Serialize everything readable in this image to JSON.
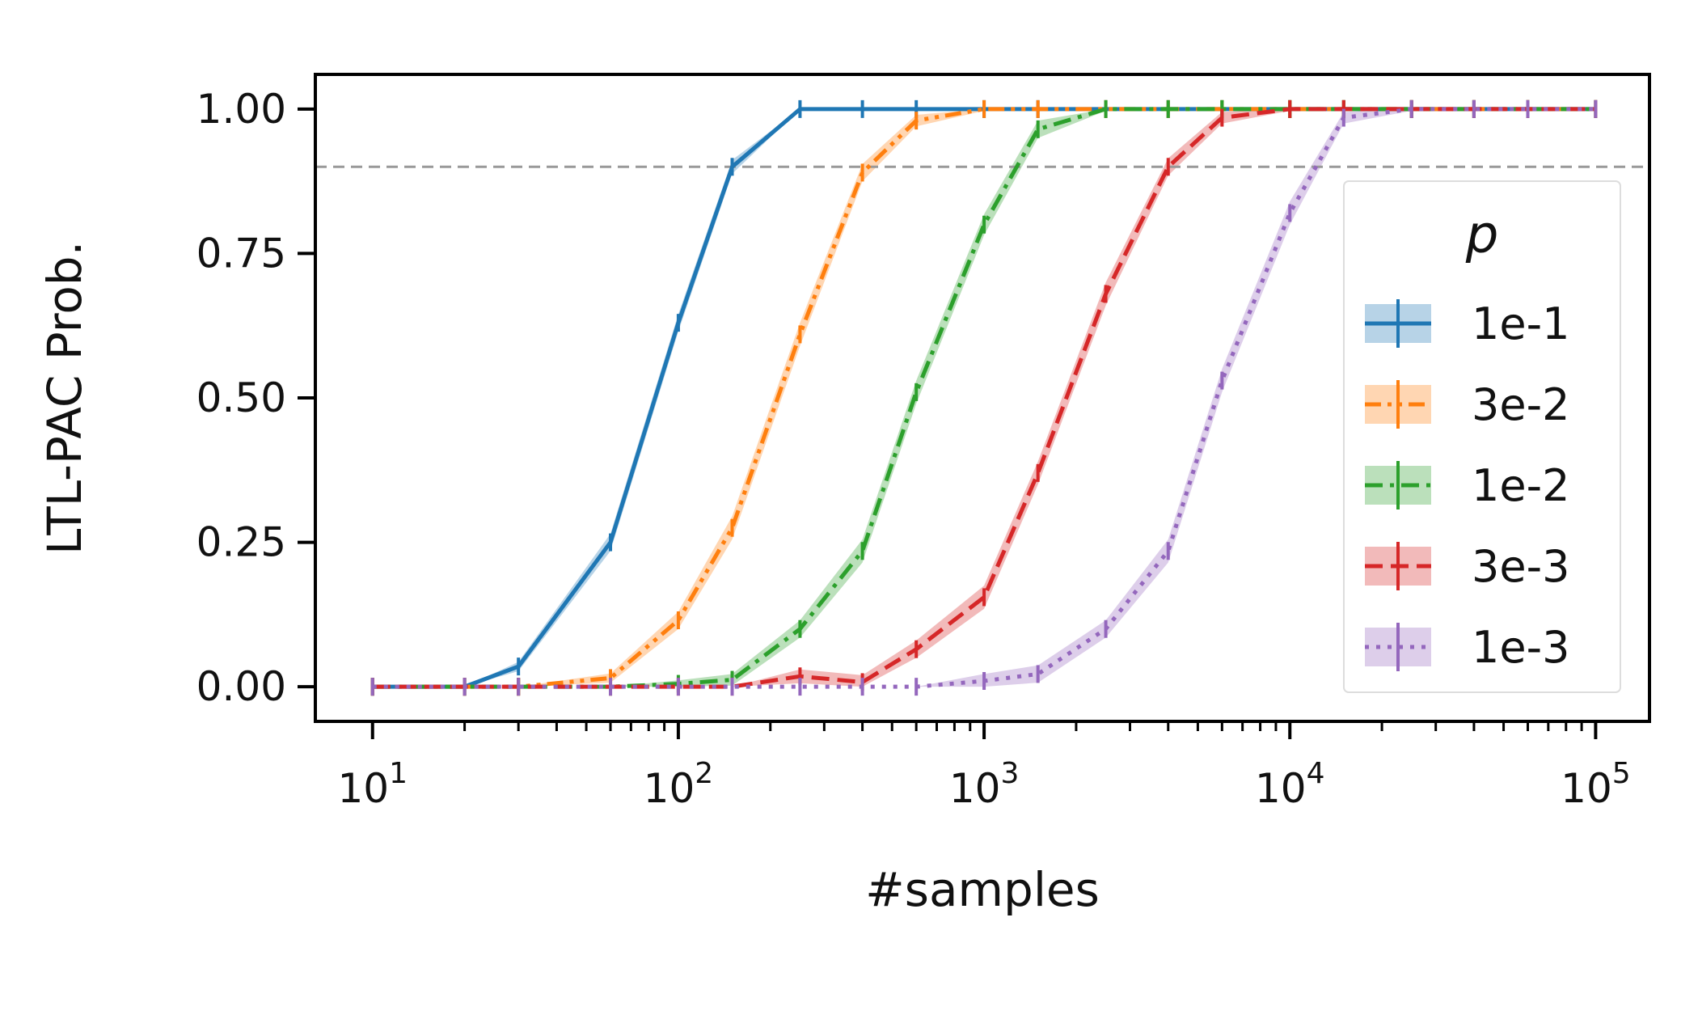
{
  "chart_data": {
    "type": "line",
    "title": "",
    "xlabel": "#samples",
    "ylabel": "LTL-PAC Prob.",
    "xscale": "log",
    "xlim": [
      6.5,
      150000
    ],
    "ylim": [
      -0.06,
      1.06
    ],
    "x_ticks": [
      {
        "value": 10,
        "base": "10",
        "exp": "1"
      },
      {
        "value": 100,
        "base": "10",
        "exp": "2"
      },
      {
        "value": 1000,
        "base": "10",
        "exp": "3"
      },
      {
        "value": 10000,
        "base": "10",
        "exp": "4"
      },
      {
        "value": 100000,
        "base": "10",
        "exp": "5"
      }
    ],
    "y_ticks": [
      {
        "value": 0,
        "label": "0.00"
      },
      {
        "value": 0.25,
        "label": "0.25"
      },
      {
        "value": 0.5,
        "label": "0.50"
      },
      {
        "value": 0.75,
        "label": "0.75"
      },
      {
        "value": 1,
        "label": "1.00"
      }
    ],
    "reference_line": {
      "y": 0.9,
      "color": "#999999",
      "style": "dashed"
    },
    "grid": false,
    "legend": {
      "title": "p",
      "placement": "right"
    },
    "x": [
      10,
      20,
      30,
      60,
      100,
      150,
      250,
      400,
      600,
      1000,
      1500,
      2500,
      4000,
      6000,
      10000,
      15000,
      25000,
      40000,
      60000,
      100000
    ],
    "series": [
      {
        "name": "1e-1",
        "color": "#1f77b4",
        "dash": "solid",
        "values": [
          0,
          0,
          0.035,
          0.25,
          0.63,
          0.9,
          1,
          1,
          1,
          1,
          1,
          1,
          1,
          1,
          1,
          1,
          1,
          1,
          1,
          1
        ],
        "band": [
          0,
          0,
          0.008,
          0.015,
          0.015,
          0.012,
          0,
          0,
          0,
          0,
          0,
          0,
          0,
          0,
          0,
          0,
          0,
          0,
          0,
          0
        ]
      },
      {
        "name": "3e-2",
        "color": "#ff7f0e",
        "dash": "dashdotdot",
        "values": [
          0,
          0,
          0,
          0.015,
          0.115,
          0.275,
          0.61,
          0.89,
          0.98,
          1,
          1,
          1,
          1,
          1,
          1,
          1,
          1,
          1,
          1,
          1
        ],
        "band": [
          0,
          0,
          0,
          0.008,
          0.015,
          0.02,
          0.02,
          0.015,
          0.01,
          0.003,
          0,
          0,
          0,
          0,
          0,
          0,
          0,
          0,
          0,
          0
        ]
      },
      {
        "name": "1e-2",
        "color": "#2ca02c",
        "dash": "dashdot",
        "values": [
          0,
          0,
          0,
          0,
          0.005,
          0.012,
          0.1,
          0.235,
          0.51,
          0.8,
          0.965,
          1,
          1,
          1,
          1,
          1,
          1,
          1,
          1,
          1
        ],
        "band": [
          0,
          0,
          0,
          0,
          0.006,
          0.01,
          0.015,
          0.02,
          0.02,
          0.018,
          0.015,
          0.003,
          0,
          0,
          0,
          0,
          0,
          0,
          0,
          0
        ]
      },
      {
        "name": "3e-3",
        "color": "#d62728",
        "dash": "dashed",
        "values": [
          0,
          0,
          0,
          0,
          0,
          0,
          0.018,
          0.008,
          0.065,
          0.155,
          0.37,
          0.68,
          0.9,
          0.985,
          1,
          1,
          1,
          1,
          1,
          1
        ],
        "band": [
          0,
          0,
          0,
          0,
          0,
          0,
          0.012,
          0.012,
          0.015,
          0.02,
          0.02,
          0.02,
          0.015,
          0.01,
          0.003,
          0,
          0,
          0,
          0,
          0
        ]
      },
      {
        "name": "1e-3",
        "color": "#9467bd",
        "dash": "dotted",
        "values": [
          0,
          0,
          0,
          0,
          0,
          0,
          0,
          0,
          0,
          0.01,
          0.022,
          0.1,
          0.235,
          0.53,
          0.82,
          0.985,
          1,
          1,
          1,
          1
        ],
        "band": [
          0,
          0,
          0,
          0,
          0,
          0,
          0,
          0,
          0,
          0.012,
          0.015,
          0.015,
          0.02,
          0.02,
          0.02,
          0.01,
          0.003,
          0,
          0,
          0
        ]
      }
    ]
  }
}
